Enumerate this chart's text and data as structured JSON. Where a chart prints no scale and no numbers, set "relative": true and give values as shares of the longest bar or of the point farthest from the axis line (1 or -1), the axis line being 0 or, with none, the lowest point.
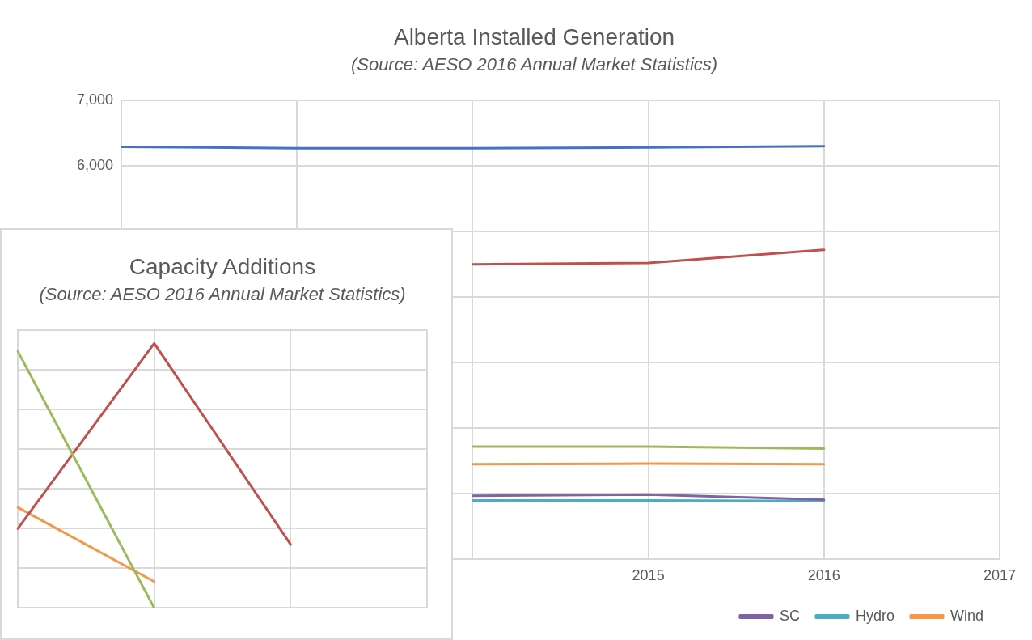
{
  "chart_data": [
    {
      "type": "line",
      "title": "Alberta Installed Generation",
      "subtitle": "(Source: AESO 2016 Annual Market Statistics)",
      "x": [
        2012,
        2013,
        2014,
        2015,
        2016
      ],
      "xlim": [
        2012,
        2017
      ],
      "xticks": [
        {
          "value": 2012,
          "label": null
        },
        {
          "value": 2013,
          "label": null
        },
        {
          "value": 2014,
          "label": null
        },
        2015,
        2016,
        2017
      ],
      "ylim": [
        0,
        7000
      ],
      "yticks": [
        {
          "value": 0,
          "label": null
        },
        {
          "value": 1000,
          "label": null
        },
        {
          "value": 2000,
          "label": null
        },
        {
          "value": 3000,
          "label": null
        },
        {
          "value": 4000,
          "label": null
        },
        {
          "value": 5000,
          "label": null
        },
        {
          "value": 6000,
          "label": "6,000"
        },
        {
          "value": 7000,
          "label": "7,000"
        }
      ],
      "series": [
        {
          "color": "#4472c4",
          "values": [
            6290,
            6270,
            6270,
            6280,
            6300
          ]
        },
        {
          "color": "#c0504d",
          "values": [
            null,
            null,
            4500,
            4520,
            4720
          ]
        },
        {
          "color": "#9bbb59",
          "values": [
            null,
            null,
            1720,
            1720,
            1690
          ]
        },
        {
          "name": "SC",
          "color": "#8064a2",
          "values": [
            null,
            null,
            970,
            990,
            910
          ]
        },
        {
          "name": "Hydro",
          "color": "#4bacc6",
          "values": [
            null,
            null,
            900,
            900,
            890
          ]
        },
        {
          "name": "Wind",
          "color": "#f79646",
          "values": [
            null,
            null,
            1450,
            1460,
            1450
          ]
        }
      ],
      "grid": true,
      "legend": "bottom",
      "marker": "none"
    },
    {
      "type": "line",
      "title": "Capacity Additions",
      "subtitle": "(Source: AESO 2016 Annual Market Statistics)",
      "categories": [
        null,
        null,
        null,
        null
      ],
      "relative": true,
      "series": [
        {
          "color": "#9bbb59",
          "values": [
            0.97,
            0,
            null,
            null
          ]
        },
        {
          "color": "#c0504d",
          "values": [
            0.3,
            1,
            0.24,
            null
          ]
        },
        {
          "color": "#f79646",
          "values": [
            0.38,
            0.1,
            null,
            null
          ]
        }
      ],
      "grid": true,
      "legend": false,
      "marker": "none"
    }
  ]
}
